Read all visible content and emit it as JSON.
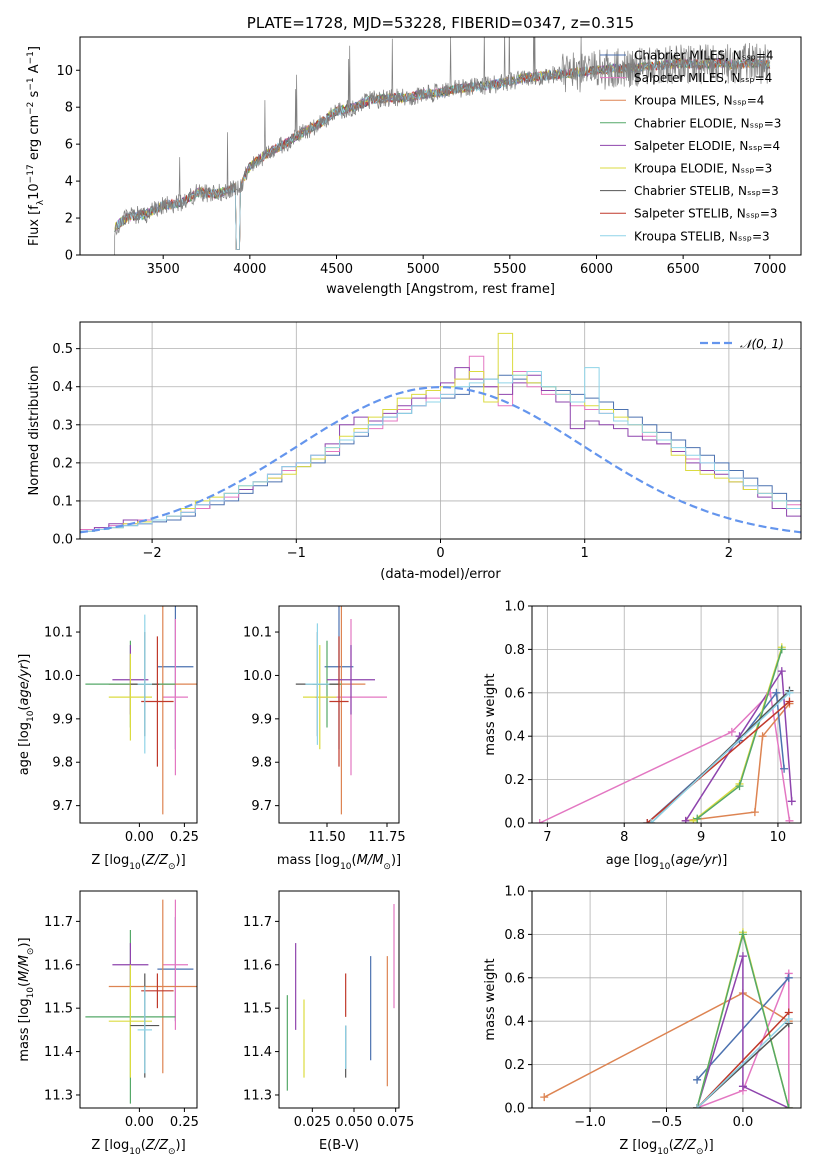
{
  "chart_data": [
    {
      "id": "spectrum",
      "type": "line",
      "title": "PLATE=1728, MJD=53228, FIBERID=0347, z=0.315",
      "xlabel": "wavelength [Angstrom, rest frame]",
      "ylabel": "Flux [f_λ 10^{-17} erg cm^{-2} s^{-1} A^{-1}]",
      "xlim": [
        3020,
        7180
      ],
      "ylim": [
        0,
        11.8
      ],
      "xticks": [
        3500,
        4000,
        4500,
        5000,
        5500,
        6000,
        6500,
        7000
      ],
      "yticks": [
        0,
        2,
        4,
        6,
        8,
        10
      ],
      "legend_position": "right",
      "data_trace": {
        "name": "data",
        "x": [
          3220,
          3300,
          3400,
          3500,
          3600,
          3700,
          3800,
          3900,
          3950,
          4000,
          4100,
          4200,
          4300,
          4400,
          4500,
          4600,
          4700,
          4800,
          4900,
          5000,
          5100,
          5200,
          5300,
          5400,
          5500,
          5600,
          5700,
          5800,
          5900,
          6000,
          6100,
          6200,
          6300,
          6400,
          6500,
          6600,
          6700,
          6800,
          6900,
          7000
        ],
        "y": [
          1.5,
          2.1,
          2.2,
          2.7,
          2.8,
          3.4,
          3.3,
          3.6,
          3.8,
          4.8,
          5.5,
          6.0,
          6.6,
          7.1,
          7.8,
          8.0,
          8.4,
          8.5,
          8.5,
          8.7,
          8.8,
          9.0,
          9.1,
          9.2,
          9.4,
          9.6,
          9.7,
          9.8,
          9.9,
          10.0,
          10.1,
          10.1,
          10.2,
          10.3,
          10.4,
          10.3,
          10.4,
          10.3,
          10.4,
          10.3
        ]
      },
      "legend": [
        {
          "label": "Chabrier MILES, N_SSP=4",
          "color": "#4c72b0"
        },
        {
          "label": "Salpeter MILES, N_SSP=4",
          "color": "#e377c2"
        },
        {
          "label": "Kroupa MILES, N_SSP=4",
          "color": "#dd8452"
        },
        {
          "label": "Chabrier ELODIE, N_SSP=3",
          "color": "#55a868"
        },
        {
          "label": "Salpeter ELODIE, N_SSP=4",
          "color": "#8e44ad"
        },
        {
          "label": "Kroupa ELODIE, N_SSP=3",
          "color": "#dbdb40"
        },
        {
          "label": "Chabrier STELIB, N_SSP=3",
          "color": "#555555"
        },
        {
          "label": "Salpeter STELIB, N_SSP=3",
          "color": "#c0392b"
        },
        {
          "label": "Kroupa STELIB, N_SSP=3",
          "color": "#8fd4e8"
        }
      ]
    },
    {
      "id": "residuals",
      "type": "histogram",
      "xlabel": "(data-model)/error",
      "ylabel": "Normed distribution",
      "xlim": [
        -2.5,
        2.5
      ],
      "ylim": [
        0,
        0.57
      ],
      "xticks": [
        -2,
        -1,
        0,
        1,
        2
      ],
      "yticks": [
        0.0,
        0.1,
        0.2,
        0.3,
        0.4,
        0.5
      ],
      "grid": true,
      "legend": [
        {
          "label": "𝒩(0, 1)",
          "color": "#6495ed",
          "style": "dashed"
        }
      ],
      "legend_position": "top-right",
      "bin_width": 0.1,
      "histograms": [
        {
          "color": "#4c72b0",
          "values": [
            0.02,
            0.025,
            0.03,
            0.035,
            0.04,
            0.045,
            0.05,
            0.06,
            0.08,
            0.09,
            0.1,
            0.12,
            0.14,
            0.15,
            0.18,
            0.19,
            0.2,
            0.22,
            0.25,
            0.27,
            0.3,
            0.32,
            0.33,
            0.35,
            0.36,
            0.37,
            0.38,
            0.4,
            0.42,
            0.43,
            0.42,
            0.41,
            0.4,
            0.39,
            0.38,
            0.37,
            0.36,
            0.34,
            0.32,
            0.3,
            0.28,
            0.26,
            0.24,
            0.22,
            0.2,
            0.18,
            0.16,
            0.14,
            0.12,
            0.1
          ]
        },
        {
          "color": "#e377c2",
          "values": [
            0.025,
            0.03,
            0.035,
            0.04,
            0.05,
            0.05,
            0.06,
            0.07,
            0.08,
            0.1,
            0.11,
            0.13,
            0.15,
            0.16,
            0.18,
            0.2,
            0.21,
            0.23,
            0.26,
            0.28,
            0.29,
            0.31,
            0.34,
            0.35,
            0.37,
            0.38,
            0.42,
            0.48,
            0.4,
            0.35,
            0.44,
            0.4,
            0.38,
            0.38,
            0.35,
            0.34,
            0.33,
            0.31,
            0.3,
            0.27,
            0.25,
            0.23,
            0.21,
            0.2,
            0.18,
            0.16,
            0.14,
            0.12,
            0.1,
            0.09
          ]
        },
        {
          "color": "#8e44ad",
          "values": [
            0.02,
            0.03,
            0.04,
            0.05,
            0.04,
            0.05,
            0.06,
            0.07,
            0.09,
            0.1,
            0.12,
            0.13,
            0.15,
            0.17,
            0.19,
            0.2,
            0.22,
            0.25,
            0.3,
            0.32,
            0.31,
            0.33,
            0.35,
            0.37,
            0.39,
            0.41,
            0.45,
            0.42,
            0.4,
            0.38,
            0.41,
            0.43,
            0.39,
            0.36,
            0.29,
            0.31,
            0.3,
            0.29,
            0.27,
            0.26,
            0.25,
            0.23,
            0.2,
            0.18,
            0.17,
            0.15,
            0.13,
            0.11,
            0.08,
            0.06
          ]
        },
        {
          "color": "#dbdb40",
          "values": [
            0.02,
            0.025,
            0.03,
            0.04,
            0.045,
            0.05,
            0.06,
            0.08,
            0.1,
            0.11,
            0.12,
            0.14,
            0.15,
            0.16,
            0.17,
            0.19,
            0.21,
            0.24,
            0.27,
            0.29,
            0.32,
            0.34,
            0.37,
            0.38,
            0.39,
            0.4,
            0.42,
            0.44,
            0.36,
            0.54,
            0.43,
            0.41,
            0.4,
            0.38,
            0.36,
            0.35,
            0.34,
            0.32,
            0.3,
            0.28,
            0.26,
            0.22,
            0.18,
            0.17,
            0.16,
            0.15,
            0.13,
            0.12,
            0.1,
            0.08
          ]
        },
        {
          "color": "#8fd4e8",
          "values": [
            0.02,
            0.025,
            0.03,
            0.035,
            0.04,
            0.05,
            0.06,
            0.07,
            0.09,
            0.1,
            0.12,
            0.14,
            0.15,
            0.17,
            0.19,
            0.2,
            0.22,
            0.24,
            0.26,
            0.28,
            0.3,
            0.32,
            0.33,
            0.35,
            0.36,
            0.38,
            0.4,
            0.41,
            0.42,
            0.41,
            0.43,
            0.44,
            0.4,
            0.38,
            0.36,
            0.45,
            0.33,
            0.31,
            0.3,
            0.28,
            0.26,
            0.24,
            0.22,
            0.2,
            0.18,
            0.16,
            0.14,
            0.12,
            0.1,
            0.08
          ]
        }
      ],
      "gaussian": {
        "mu": 0,
        "sigma": 1
      }
    },
    {
      "id": "age-vs-Z",
      "type": "errorbar",
      "xlabel": "Z [log10(Z/Z⊙)]",
      "ylabel": "age [log10(age/yr)]",
      "xlim": [
        -0.33,
        0.32
      ],
      "ylim": [
        9.66,
        10.16
      ],
      "xticks": [
        0.0,
        0.25
      ],
      "yticks": [
        9.7,
        9.8,
        9.9,
        10.0,
        10.1
      ],
      "points": [
        {
          "color": "#4c72b0",
          "x": 0.2,
          "xerr": 0.1,
          "y": 10.02,
          "yerr": 0.19
        },
        {
          "color": "#e377c2",
          "x": 0.2,
          "xerr": 0.07,
          "y": 9.95,
          "yerr": 0.18
        },
        {
          "color": "#dd8452",
          "x": 0.13,
          "xerr": 0.3,
          "y": 9.98,
          "yerr": 0.3
        },
        {
          "color": "#55a868",
          "x": -0.05,
          "xerr": 0.25,
          "y": 9.98,
          "yerr": 0.1
        },
        {
          "color": "#8e44ad",
          "x": -0.05,
          "xerr": 0.1,
          "y": 9.99,
          "yerr": 0.08
        },
        {
          "color": "#dbdb40",
          "x": -0.05,
          "xerr": 0.12,
          "y": 9.95,
          "yerr": 0.1
        },
        {
          "color": "#555555",
          "x": 0.03,
          "xerr": 0.08,
          "y": 9.98,
          "yerr": 0.12
        },
        {
          "color": "#c0392b",
          "x": 0.1,
          "xerr": 0.09,
          "y": 9.94,
          "yerr": 0.15
        },
        {
          "color": "#8fd4e8",
          "x": 0.03,
          "xerr": 0.04,
          "y": 9.98,
          "yerr": 0.16
        }
      ]
    },
    {
      "id": "age-vs-mass",
      "type": "errorbar",
      "xlabel": "mass [log10(M/M⊙)]",
      "ylabel": "",
      "xlim": [
        11.3,
        11.8
      ],
      "ylim": [
        9.66,
        10.16
      ],
      "xticks": [
        11.5,
        11.75
      ],
      "yticks": [
        9.7,
        9.8,
        9.9,
        10.0,
        10.1
      ],
      "points": [
        {
          "color": "#4c72b0",
          "x": 11.55,
          "xerr": 0.06,
          "y": 10.02,
          "yerr": 0.19
        },
        {
          "color": "#e377c2",
          "x": 11.6,
          "xerr": 0.15,
          "y": 9.95,
          "yerr": 0.18
        },
        {
          "color": "#dd8452",
          "x": 11.56,
          "xerr": 0.1,
          "y": 9.98,
          "yerr": 0.3
        },
        {
          "color": "#55a868",
          "x": 11.5,
          "xerr": 0.06,
          "y": 9.98,
          "yerr": 0.1
        },
        {
          "color": "#8e44ad",
          "x": 11.6,
          "xerr": 0.1,
          "y": 9.99,
          "yerr": 0.08
        },
        {
          "color": "#dbdb40",
          "x": 11.47,
          "xerr": 0.07,
          "y": 9.95,
          "yerr": 0.12
        },
        {
          "color": "#555555",
          "x": 11.46,
          "xerr": 0.09,
          "y": 9.98,
          "yerr": 0.12
        },
        {
          "color": "#c0392b",
          "x": 11.55,
          "xerr": 0.04,
          "y": 9.94,
          "yerr": 0.15
        },
        {
          "color": "#8fd4e8",
          "x": 11.46,
          "xerr": 0.05,
          "y": 9.98,
          "yerr": 0.14
        }
      ]
    },
    {
      "id": "massweight-vs-age",
      "type": "line",
      "xlabel": "age [log10(age/yr)]",
      "ylabel": "mass weight",
      "xlim": [
        6.8,
        10.3
      ],
      "ylim": [
        0.0,
        1.0
      ],
      "xticks": [
        7,
        8,
        9,
        10
      ],
      "yticks": [
        0.0,
        0.2,
        0.4,
        0.6,
        0.8,
        1.0
      ],
      "grid": true,
      "series": [
        {
          "color": "#e377c2",
          "x": [
            6.9,
            9.4,
            9.9,
            10.15
          ],
          "y": [
            0.0,
            0.42,
            0.6,
            0.01
          ]
        },
        {
          "color": "#dd8452",
          "x": [
            8.8,
            9.7,
            9.8,
            10.15
          ],
          "y": [
            0.01,
            0.05,
            0.4,
            0.55
          ]
        },
        {
          "color": "#4c72b0",
          "x": [
            8.3,
            9.5,
            9.98,
            10.08
          ],
          "y": [
            0.0,
            0.38,
            0.6,
            0.25
          ]
        },
        {
          "color": "#8e44ad",
          "x": [
            8.8,
            9.5,
            10.05,
            10.18
          ],
          "y": [
            0.01,
            0.4,
            0.7,
            0.1
          ]
        },
        {
          "color": "#dbdb40",
          "x": [
            8.9,
            9.5,
            10.05
          ],
          "y": [
            0.01,
            0.18,
            0.81
          ]
        },
        {
          "color": "#55a868",
          "x": [
            8.95,
            9.5,
            10.05
          ],
          "y": [
            0.02,
            0.17,
            0.8
          ]
        },
        {
          "color": "#555555",
          "x": [
            8.35,
            10.15
          ],
          "y": [
            0.0,
            0.61
          ]
        },
        {
          "color": "#c0392b",
          "x": [
            8.3,
            10.15
          ],
          "y": [
            0.0,
            0.56
          ]
        },
        {
          "color": "#8fd4e8",
          "x": [
            8.35,
            10.15
          ],
          "y": [
            0.0,
            0.6
          ]
        }
      ]
    },
    {
      "id": "mass-vs-Z",
      "type": "errorbar",
      "xlabel": "Z [log10(Z/Z⊙)]",
      "ylabel": "mass [log10(M/M⊙)]",
      "xlim": [
        -0.33,
        0.32
      ],
      "ylim": [
        11.27,
        11.77
      ],
      "xticks": [
        0.0,
        0.25
      ],
      "yticks": [
        11.3,
        11.4,
        11.5,
        11.6,
        11.7
      ],
      "points": [
        {
          "color": "#4c72b0",
          "x": 0.2,
          "xerr": 0.1,
          "y": 11.59,
          "yerr": 0.12
        },
        {
          "color": "#e377c2",
          "x": 0.2,
          "xerr": 0.07,
          "y": 11.6,
          "yerr": 0.15
        },
        {
          "color": "#dd8452",
          "x": 0.13,
          "xerr": 0.3,
          "y": 11.55,
          "yerr": 0.2
        },
        {
          "color": "#55a868",
          "x": -0.05,
          "xerr": 0.25,
          "y": 11.48,
          "yerr": 0.2
        },
        {
          "color": "#8e44ad",
          "x": -0.05,
          "xerr": 0.1,
          "y": 11.6,
          "yerr": 0.05
        },
        {
          "color": "#dbdb40",
          "x": -0.05,
          "xerr": 0.12,
          "y": 11.47,
          "yerr": 0.13
        },
        {
          "color": "#555555",
          "x": 0.03,
          "xerr": 0.08,
          "y": 11.46,
          "yerr": 0.12
        },
        {
          "color": "#c0392b",
          "x": 0.1,
          "xerr": 0.09,
          "y": 11.54,
          "yerr": 0.04
        },
        {
          "color": "#8fd4e8",
          "x": 0.03,
          "xerr": 0.04,
          "y": 11.45,
          "yerr": 0.1
        }
      ]
    },
    {
      "id": "mass-vs-EBV",
      "type": "errorbar",
      "xlabel": "E(B-V)",
      "ylabel": "",
      "xlim": [
        0.005,
        0.077
      ],
      "ylim": [
        11.27,
        11.77
      ],
      "xticks": [
        0.025,
        0.05,
        0.075
      ],
      "yticks": [
        11.3,
        11.4,
        11.5,
        11.6,
        11.7
      ],
      "tick_labels_x": [
        "0.025",
        "0.050",
        "0.075"
      ],
      "points": [
        {
          "color": "#55a868",
          "x": 0.01,
          "y": 11.42,
          "yerr": 0.11
        },
        {
          "color": "#8e44ad",
          "x": 0.015,
          "y": 11.55,
          "yerr": 0.1
        },
        {
          "color": "#dbdb40",
          "x": 0.02,
          "y": 11.43,
          "yerr": 0.09
        },
        {
          "color": "#555555",
          "x": 0.045,
          "y": 11.4,
          "yerr": 0.06
        },
        {
          "color": "#c0392b",
          "x": 0.045,
          "y": 11.53,
          "yerr": 0.05
        },
        {
          "color": "#8fd4e8",
          "x": 0.045,
          "y": 11.41,
          "yerr": 0.05
        },
        {
          "color": "#4c72b0",
          "x": 0.06,
          "y": 11.5,
          "yerr": 0.12
        },
        {
          "color": "#dd8452",
          "x": 0.07,
          "y": 11.47,
          "yerr": 0.15
        },
        {
          "color": "#e377c2",
          "x": 0.074,
          "y": 11.62,
          "yerr": 0.12
        }
      ]
    },
    {
      "id": "massweight-vs-Z",
      "type": "line",
      "xlabel": "Z [log10(Z/Z⊙)]",
      "ylabel": "mass weight",
      "xlim": [
        -1.38,
        0.38
      ],
      "ylim": [
        0.0,
        1.0
      ],
      "xticks": [
        -1.0,
        -0.5,
        0.0
      ],
      "yticks": [
        0.0,
        0.2,
        0.4,
        0.6,
        0.8,
        1.0
      ],
      "grid": true,
      "series": [
        {
          "color": "#dd8452",
          "x": [
            -1.3,
            0.0,
            0.3
          ],
          "y": [
            0.05,
            0.53,
            0.4
          ]
        },
        {
          "color": "#e377c2",
          "x": [
            -0.3,
            0.0,
            0.3,
            0.3
          ],
          "y": [
            0.0,
            0.08,
            0.62,
            0.0
          ]
        },
        {
          "color": "#4c72b0",
          "x": [
            -0.3,
            0.3
          ],
          "y": [
            0.13,
            0.6
          ]
        },
        {
          "color": "#8e44ad",
          "x": [
            -0.3,
            0.0,
            0.0,
            0.3
          ],
          "y": [
            0.0,
            0.7,
            0.1,
            0.0
          ]
        },
        {
          "color": "#dbdb40",
          "x": [
            -0.3,
            0.0,
            0.3
          ],
          "y": [
            0.0,
            0.81,
            0.0
          ]
        },
        {
          "color": "#55a868",
          "x": [
            -0.3,
            0.0,
            0.3
          ],
          "y": [
            0.0,
            0.8,
            0.0
          ]
        },
        {
          "color": "#555555",
          "x": [
            -0.3,
            0.3
          ],
          "y": [
            0.0,
            0.39
          ]
        },
        {
          "color": "#c0392b",
          "x": [
            -0.3,
            0.3
          ],
          "y": [
            0.0,
            0.44
          ]
        },
        {
          "color": "#8fd4e8",
          "x": [
            -0.3,
            0.3
          ],
          "y": [
            0.0,
            0.41
          ]
        }
      ]
    }
  ]
}
